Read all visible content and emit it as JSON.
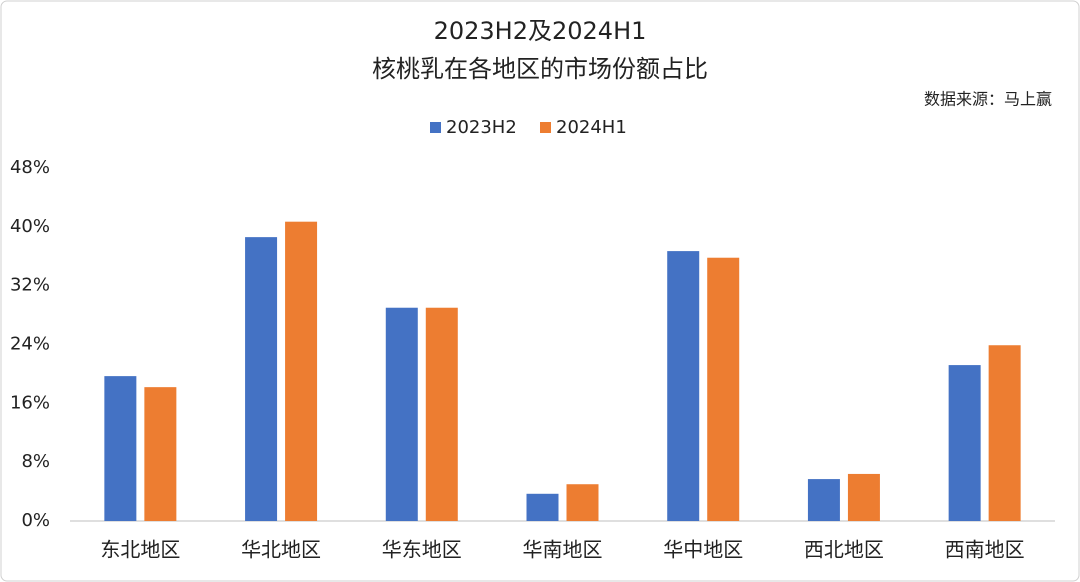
{
  "chart_data": {
    "type": "bar",
    "title": "2023H2及2024H1",
    "subtitle": "核桃乳在各地区的市场份额占比",
    "source": "数据来源：马上赢",
    "categories": [
      "东北地区",
      "华北地区",
      "华东地区",
      "华南地区",
      "华中地区",
      "西北地区",
      "西南地区"
    ],
    "series": [
      {
        "name": "2023H2",
        "color": "#4472c4",
        "values": [
          19.7,
          38.6,
          29.0,
          3.7,
          36.7,
          5.7,
          21.2
        ]
      },
      {
        "name": "2024H1",
        "color": "#ed7d31",
        "values": [
          18.2,
          40.7,
          29.0,
          5.0,
          35.8,
          6.4,
          23.9
        ]
      }
    ],
    "ylim": [
      0,
      48
    ],
    "yticks": [
      {
        "value": 0,
        "label": "0%"
      },
      {
        "value": 8,
        "label": "8%"
      },
      {
        "value": 16,
        "label": "16%"
      },
      {
        "value": 24,
        "label": "24%"
      },
      {
        "value": 32,
        "label": "32%"
      },
      {
        "value": 40,
        "label": "40%"
      },
      {
        "value": 48,
        "label": "48%"
      }
    ],
    "grid": false,
    "legend": "top"
  }
}
